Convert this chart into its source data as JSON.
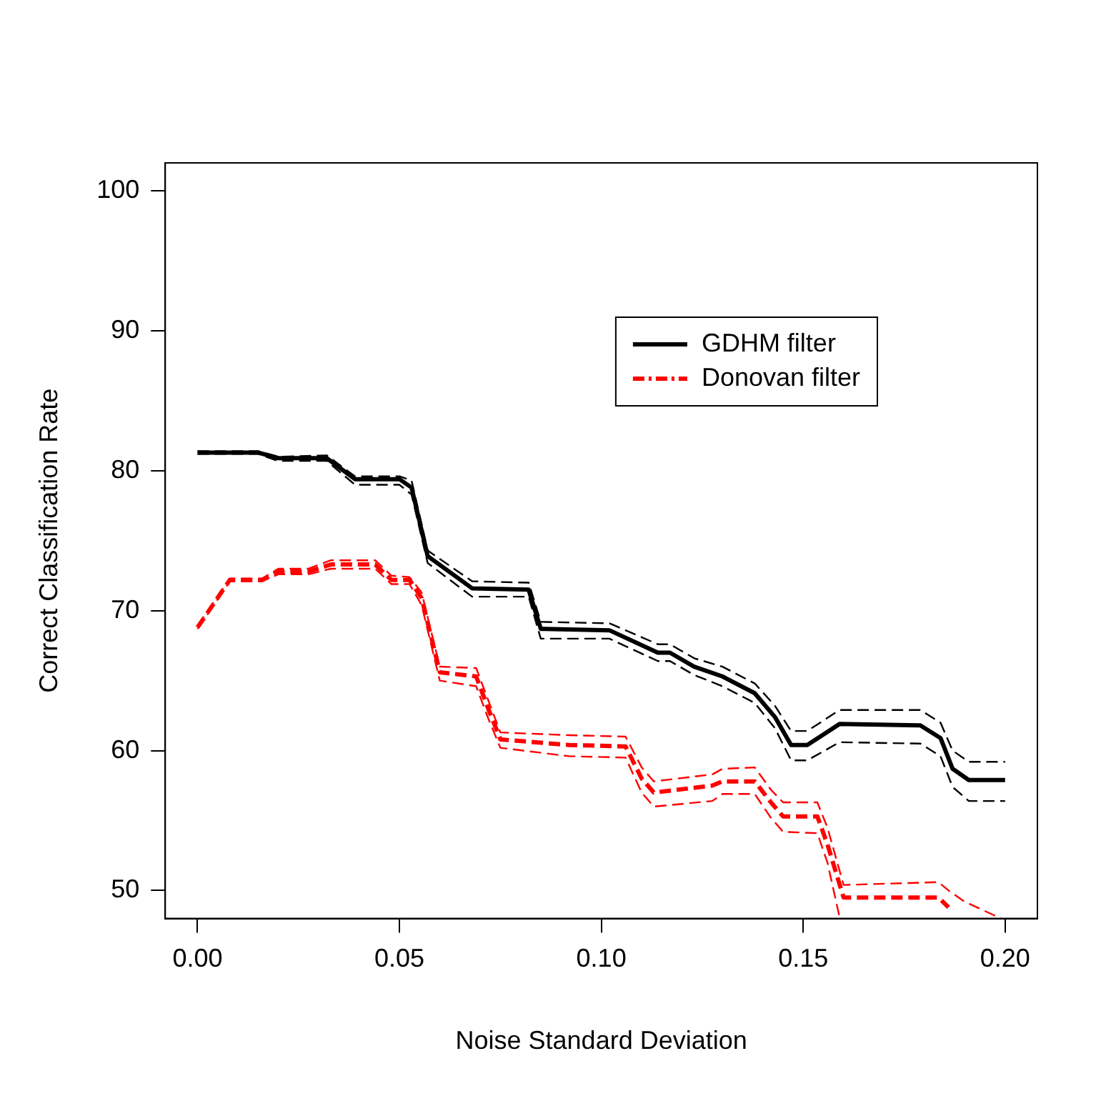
{
  "chart_data": {
    "type": "line",
    "xlabel": "Noise Standard Deviation",
    "ylabel": "Correct Classification Rate",
    "xlim": [
      -0.008,
      0.208
    ],
    "ylim": [
      48,
      102
    ],
    "xticks": [
      {
        "value": 0,
        "label": "0.00"
      },
      {
        "value": 0.05,
        "label": "0.05"
      },
      {
        "value": 0.1,
        "label": "0.10"
      },
      {
        "value": 0.15,
        "label": "0.15"
      },
      {
        "value": 0.2,
        "label": "0.20"
      }
    ],
    "yticks": [
      50,
      60,
      70,
      80,
      90,
      100
    ],
    "grid": false,
    "legend": "top right",
    "marker": "none",
    "series": [
      {
        "name": "GDHM filter",
        "color": "#000000",
        "line_style": "solid",
        "x": [
          0,
          0.015,
          0.02,
          0.032,
          0.039,
          0.05,
          0.053,
          0.057,
          0.068,
          0.082,
          0.085,
          0.102,
          0.114,
          0.117,
          0.123,
          0.13,
          0.138,
          0.143,
          0.147,
          0.151,
          0.159,
          0.179,
          0.184,
          0.187,
          0.191,
          0.2
        ],
        "values": [
          81.3,
          81.3,
          80.9,
          80.9,
          79.4,
          79.4,
          78.8,
          73.9,
          71.6,
          71.5,
          68.7,
          68.6,
          67.0,
          67.0,
          66.0,
          65.3,
          64.1,
          62.4,
          60.4,
          60.4,
          61.9,
          61.8,
          60.9,
          58.7,
          57.9,
          57.9
        ]
      },
      {
        "color": "#000000",
        "line_style": "dashed",
        "x": [
          0,
          0.015,
          0.02,
          0.032,
          0.039,
          0.05,
          0.053,
          0.057,
          0.068,
          0.082,
          0.085,
          0.102,
          0.114,
          0.117,
          0.123,
          0.13,
          0.138,
          0.143,
          0.147,
          0.151,
          0.159,
          0.179,
          0.184,
          0.187,
          0.191,
          0.2
        ],
        "values": [
          81.4,
          81.4,
          81.0,
          81.1,
          79.6,
          79.6,
          79.3,
          74.3,
          72.1,
          72.0,
          69.2,
          69.1,
          67.6,
          67.6,
          66.6,
          66.0,
          64.8,
          63.2,
          61.4,
          61.4,
          62.9,
          62.9,
          62.0,
          60.0,
          59.2,
          59.2
        ]
      },
      {
        "color": "#000000",
        "line_style": "dashed",
        "x": [
          0,
          0.015,
          0.02,
          0.032,
          0.039,
          0.05,
          0.053,
          0.057,
          0.068,
          0.082,
          0.085,
          0.102,
          0.114,
          0.117,
          0.123,
          0.13,
          0.138,
          0.143,
          0.147,
          0.151,
          0.159,
          0.179,
          0.184,
          0.187,
          0.191,
          0.2
        ],
        "values": [
          81.2,
          81.2,
          80.7,
          80.7,
          79.0,
          79.0,
          78.3,
          73.4,
          71.0,
          71.0,
          68.0,
          68.0,
          66.4,
          66.4,
          65.4,
          64.6,
          63.4,
          61.6,
          59.3,
          59.3,
          60.6,
          60.5,
          59.6,
          57.4,
          56.4,
          56.4
        ]
      },
      {
        "name": "Donovan filter",
        "color": "#ff0000",
        "line_style": "dashed",
        "x": [
          0,
          0.008,
          0.016,
          0.02,
          0.0275,
          0.033,
          0.044,
          0.048,
          0.0525,
          0.0555,
          0.06,
          0.069,
          0.072,
          0.075,
          0.092,
          0.106,
          0.11,
          0.113,
          0.1275,
          0.13,
          0.138,
          0.142,
          0.145,
          0.1535,
          0.156,
          0.16,
          0.1835,
          0.186
        ],
        "values": [
          68.8,
          72.2,
          72.2,
          72.8,
          72.8,
          73.3,
          73.3,
          72.2,
          72.2,
          70.9,
          65.6,
          65.3,
          63.0,
          60.8,
          60.4,
          60.3,
          58.0,
          57.0,
          57.5,
          57.8,
          57.8,
          56.3,
          55.3,
          55.3,
          53.3,
          49.5,
          49.5,
          48.8
        ]
      },
      {
        "color": "#ff0000",
        "line_style": "dashed",
        "x": [
          0,
          0.008,
          0.016,
          0.02,
          0.0275,
          0.033,
          0.044,
          0.048,
          0.0525,
          0.0555,
          0.06,
          0.069,
          0.072,
          0.075,
          0.092,
          0.106,
          0.11,
          0.113,
          0.1275,
          0.13,
          0.138,
          0.142,
          0.145,
          0.1535,
          0.156,
          0.16,
          0.1835,
          0.186,
          0.19,
          0.199
        ],
        "values": [
          68.9,
          72.3,
          72.3,
          73.0,
          73.0,
          73.6,
          73.6,
          72.5,
          72.4,
          71.3,
          66.0,
          65.9,
          63.6,
          61.3,
          61.1,
          61.0,
          58.8,
          57.8,
          58.3,
          58.7,
          58.8,
          57.2,
          56.3,
          56.3,
          54.5,
          50.4,
          50.6,
          50.0,
          49.2,
          48.0
        ]
      },
      {
        "color": "#ff0000",
        "line_style": "dashed",
        "x": [
          0,
          0.008,
          0.016,
          0.02,
          0.0275,
          0.033,
          0.044,
          0.048,
          0.0525,
          0.0555,
          0.06,
          0.069,
          0.072,
          0.075,
          0.092,
          0.106,
          0.11,
          0.113,
          0.1275,
          0.13,
          0.138,
          0.142,
          0.145,
          0.1535,
          0.156,
          0.159
        ],
        "values": [
          68.7,
          72.1,
          72.1,
          72.6,
          72.6,
          73.0,
          73.0,
          71.9,
          71.9,
          70.4,
          65.0,
          64.6,
          62.3,
          60.2,
          59.6,
          59.5,
          57.0,
          56.0,
          56.4,
          56.9,
          56.9,
          55.2,
          54.2,
          54.1,
          52.0,
          48.1
        ]
      }
    ]
  }
}
